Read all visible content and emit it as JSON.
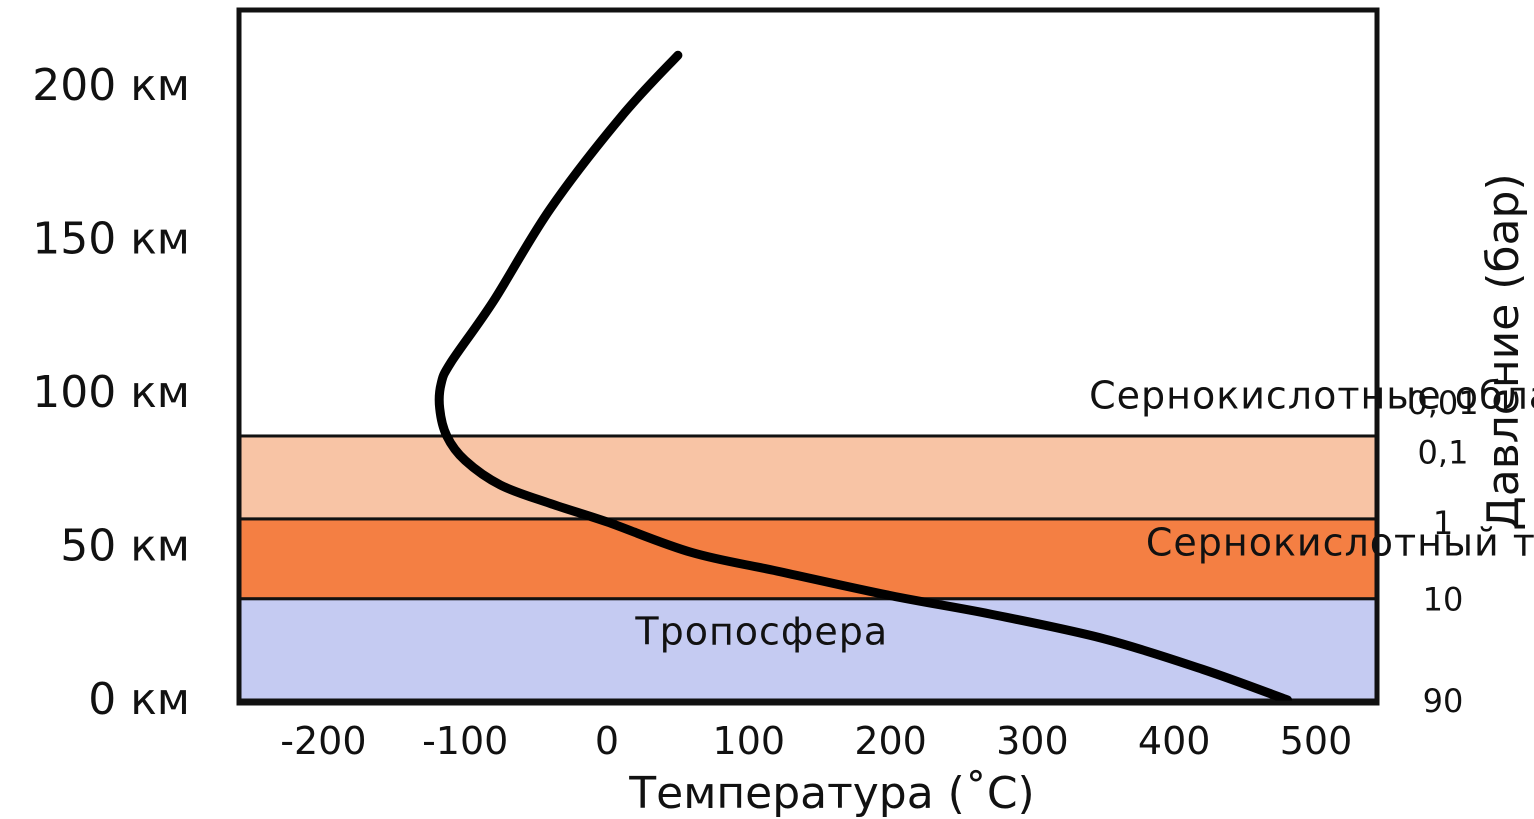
{
  "chart_data": {
    "type": "line",
    "title": "",
    "xlabel": "Температура (˚C)",
    "ylabel": "",
    "right_label": "Давление (бар)",
    "xlim": [
      -260,
      560
    ],
    "ylim": [
      0,
      223
    ],
    "x_ticks": [
      -200,
      -100,
      0,
      100,
      200,
      300,
      400,
      500
    ],
    "x_tick_labels": [
      "-200",
      "-100",
      "0",
      "100",
      "200",
      "300",
      "400",
      "500"
    ],
    "y_ticks": [
      {
        "value": 0,
        "label": "0 км"
      },
      {
        "value": 50,
        "label": "50 км"
      },
      {
        "value": 100,
        "label": "100 км"
      },
      {
        "value": 150,
        "label": "150 км"
      },
      {
        "value": 200,
        "label": "200 км"
      }
    ],
    "pressure_ticks": [
      {
        "altitude": 0,
        "label": "90"
      },
      {
        "altitude": 33,
        "label": "10"
      },
      {
        "altitude": 58,
        "label": "1"
      },
      {
        "altitude": 81,
        "label": "0,1"
      },
      {
        "altitude": 97,
        "label": "0,01"
      }
    ],
    "grid": false,
    "bands": [
      {
        "from": 0,
        "to": 33,
        "label": "Тропосфера",
        "color": "#c5cbf2",
        "label_x": 20,
        "label_y": 18
      },
      {
        "from": 33,
        "to": 59,
        "label": "Сернокислотный туман",
        "color": "#f47f43",
        "label_x": 380,
        "label_y": 47
      },
      {
        "from": 59,
        "to": 86,
        "label": "",
        "color": "#f8c4a5"
      }
    ],
    "annotations": [
      {
        "text": "Сернокислотные облака",
        "x": 340,
        "y": 95
      }
    ],
    "series": [
      {
        "color": "#000000",
        "x": [
          480,
          420,
          350,
          270,
          200,
          120,
          60,
          0,
          -40,
          -75,
          -100,
          -113,
          -118,
          -117,
          -110,
          -80,
          -40,
          10,
          50
        ],
        "y": [
          0,
          10,
          20,
          28,
          34,
          42,
          48,
          58,
          64,
          70,
          78,
          86,
          95,
          103,
          110,
          130,
          160,
          190,
          210
        ]
      }
    ]
  }
}
